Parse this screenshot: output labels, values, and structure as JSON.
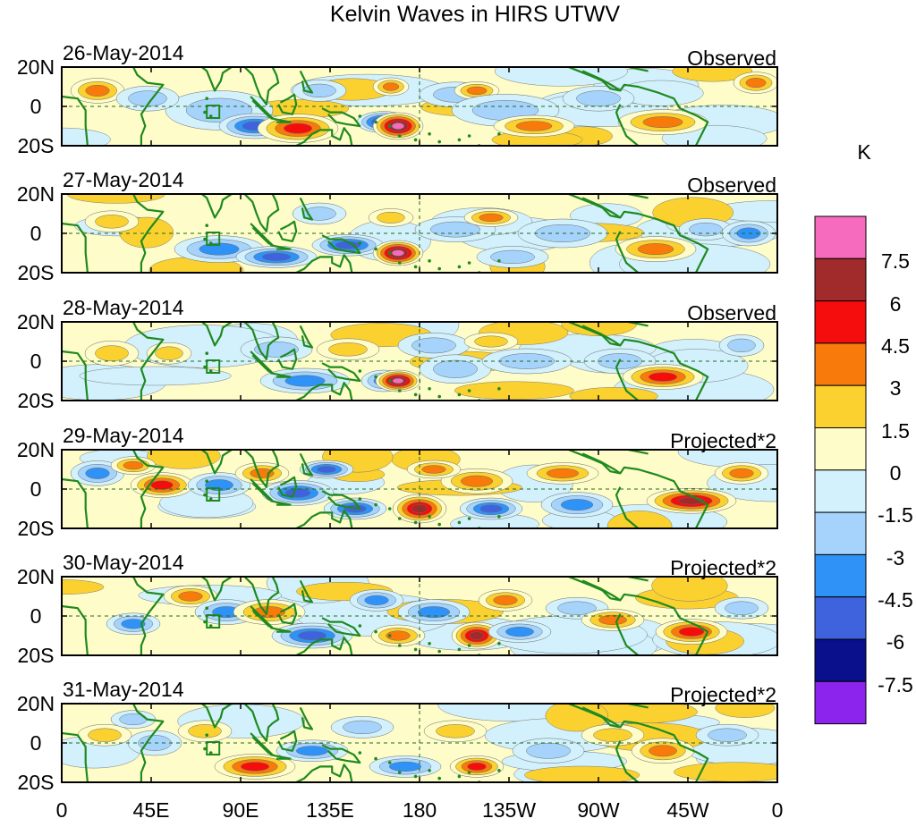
{
  "title": "Kelvin Waves in HIRS UTWV",
  "panels": [
    {
      "date": "26-May-2014",
      "label": "Observed"
    },
    {
      "date": "27-May-2014",
      "label": "Observed"
    },
    {
      "date": "28-May-2014",
      "label": "Observed"
    },
    {
      "date": "29-May-2014",
      "label": "Projected*2"
    },
    {
      "date": "30-May-2014",
      "label": "Projected*2"
    },
    {
      "date": "31-May-2014",
      "label": "Projected*2"
    }
  ],
  "y_ticks": [
    "20N",
    "0",
    "20S"
  ],
  "x_ticks": [
    "0",
    "45E",
    "90E",
    "135E",
    "180",
    "135W",
    "90W",
    "45W",
    "0"
  ],
  "colorbar": {
    "unit": "K",
    "labels": [
      "7.5",
      "6",
      "4.5",
      "3",
      "1.5",
      "0",
      "-1.5",
      "-3",
      "-4.5",
      "-6",
      "-7.5"
    ],
    "colors": [
      "#f66bbd",
      "#a12a2a",
      "#f50d0d",
      "#f77a0a",
      "#fbd130",
      "#fefcc8",
      "#d2f1fc",
      "#a6d3fb",
      "#2e92f6",
      "#3f63dc",
      "#0a0f8c",
      "#8d24ed"
    ]
  },
  "coast_color": "#1f8a1f"
}
